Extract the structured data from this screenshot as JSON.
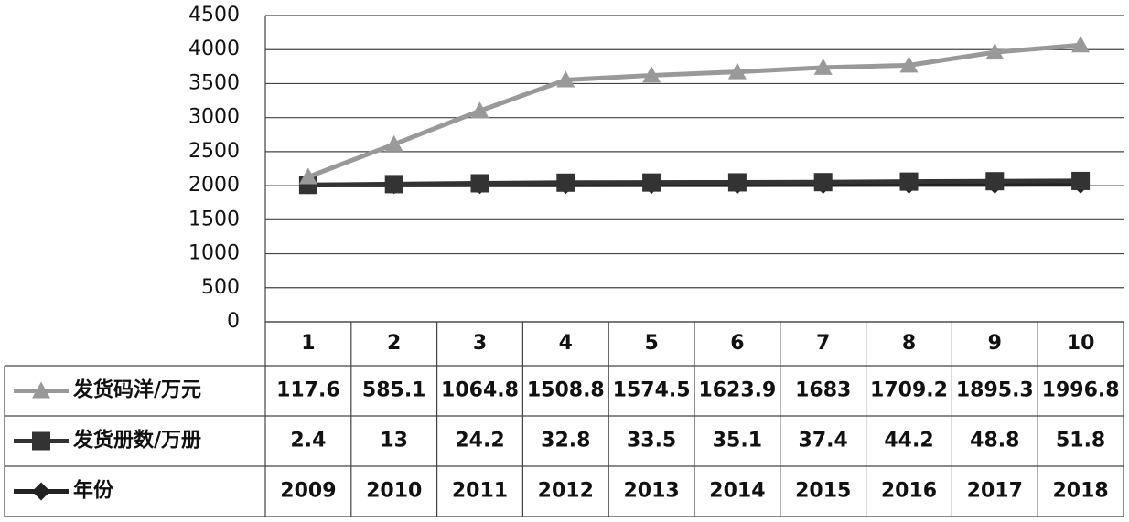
{
  "chart_data": {
    "type": "line",
    "stacked": true,
    "categories": [
      "1",
      "2",
      "3",
      "4",
      "5",
      "6",
      "7",
      "8",
      "9",
      "10"
    ],
    "series": [
      {
        "name": "发货码洋/万元",
        "color": "#999999",
        "marker": "triangle",
        "values": [
          117.6,
          585.1,
          1064.8,
          1508.8,
          1574.5,
          1623.9,
          1683,
          1709.2,
          1895.3,
          1996.8
        ]
      },
      {
        "name": "发货册数/万册",
        "color": "#333333",
        "marker": "square",
        "values": [
          2.4,
          13,
          24.2,
          32.8,
          33.5,
          35.1,
          37.4,
          44.2,
          48.8,
          51.8
        ]
      },
      {
        "name": "年份",
        "color": "#222222",
        "marker": "diamond",
        "values": [
          2009,
          2010,
          2011,
          2012,
          2013,
          2014,
          2015,
          2016,
          2017,
          2018
        ]
      }
    ],
    "ylim": [
      0,
      4500
    ],
    "yticks": [
      0,
      500,
      1000,
      1500,
      2000,
      2500,
      3000,
      3500,
      4000,
      4500
    ],
    "grid": true
  }
}
